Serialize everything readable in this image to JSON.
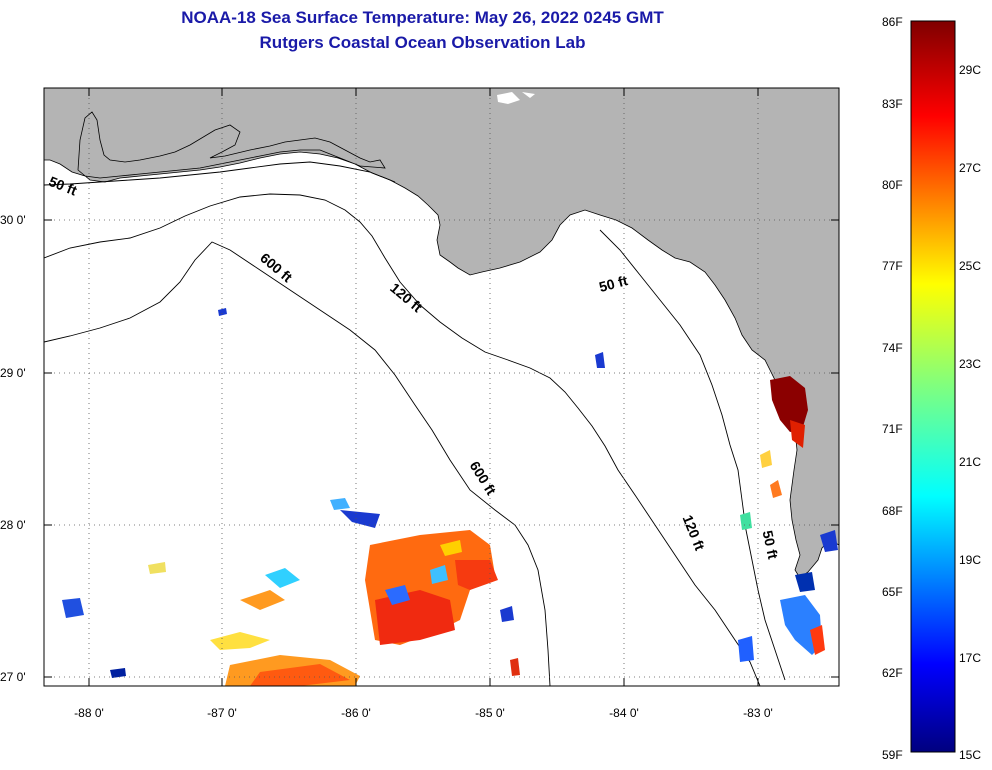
{
  "title_line1": "NOAA-18 Sea Surface Temperature:  May 26, 2022 0245 GMT",
  "title_line2": "Rutgers Coastal Ocean Observation Lab",
  "map": {
    "lat_labels": [
      "30 0'",
      "29 0'",
      "28 0'",
      "27 0'"
    ],
    "lon_labels": [
      "-88 0'",
      "-87 0'",
      "-86 0'",
      "-85 0'",
      "-84 0'",
      "-83 0'"
    ],
    "contour_labels": [
      "50 ft",
      "600 ft",
      "120 ft",
      "50 ft",
      "600 ft",
      "120 ft",
      "50 ft"
    ],
    "land_color": "#b4b4b4"
  },
  "colorbar": {
    "fahrenheit": [
      "86F",
      "83F",
      "80F",
      "77F",
      "74F",
      "71F",
      "68F",
      "65F",
      "62F",
      "59F"
    ],
    "celsius": [
      "29C",
      "27C",
      "25C",
      "23C",
      "21C",
      "19C",
      "17C",
      "15C"
    ]
  }
}
